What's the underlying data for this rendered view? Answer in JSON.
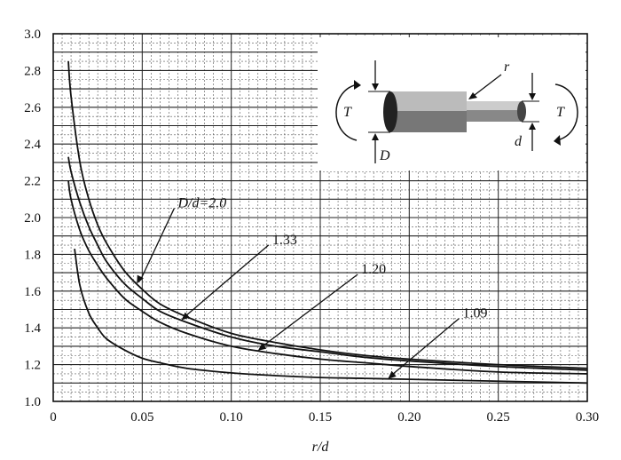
{
  "chart_data": {
    "type": "line",
    "title": "",
    "xlabel": "r/d",
    "ylabel": "",
    "xlim": [
      0,
      0.3
    ],
    "ylim": [
      1.0,
      3.0
    ],
    "grid": true,
    "x_ticks": [
      "0",
      "0.05",
      "0.10",
      "0.15",
      "0.20",
      "0.25",
      "0.30"
    ],
    "y_ticks": [
      "1.0",
      "1.2",
      "1.4",
      "1.6",
      "1.8",
      "2.0",
      "2.2",
      "2.4",
      "2.6",
      "2.8",
      "3.0"
    ],
    "series": [
      {
        "name": "D/d=2.0",
        "x": [
          0.0085,
          0.01,
          0.015,
          0.02,
          0.025,
          0.03,
          0.04,
          0.05,
          0.06,
          0.075,
          0.1,
          0.125,
          0.15,
          0.175,
          0.2,
          0.25,
          0.3
        ],
        "y": [
          2.85,
          2.66,
          2.3,
          2.1,
          1.96,
          1.86,
          1.71,
          1.61,
          1.53,
          1.46,
          1.37,
          1.32,
          1.28,
          1.25,
          1.23,
          1.2,
          1.18
        ]
      },
      {
        "name": "1.33",
        "x": [
          0.0085,
          0.01,
          0.015,
          0.02,
          0.025,
          0.03,
          0.04,
          0.05,
          0.06,
          0.075,
          0.1,
          0.125,
          0.15,
          0.175,
          0.2,
          0.25,
          0.3
        ],
        "y": [
          2.33,
          2.25,
          2.08,
          1.95,
          1.85,
          1.76,
          1.64,
          1.56,
          1.49,
          1.43,
          1.35,
          1.3,
          1.27,
          1.24,
          1.22,
          1.19,
          1.17
        ]
      },
      {
        "name": "1.20",
        "x": [
          0.0085,
          0.01,
          0.015,
          0.02,
          0.025,
          0.03,
          0.04,
          0.05,
          0.06,
          0.075,
          0.1,
          0.125,
          0.15,
          0.175,
          0.2,
          0.25,
          0.3
        ],
        "y": [
          2.2,
          2.1,
          1.93,
          1.82,
          1.74,
          1.67,
          1.56,
          1.49,
          1.43,
          1.37,
          1.3,
          1.26,
          1.23,
          1.21,
          1.19,
          1.16,
          1.15
        ]
      },
      {
        "name": "1.09",
        "x": [
          0.012,
          0.015,
          0.02,
          0.025,
          0.03,
          0.04,
          0.05,
          0.06,
          0.075,
          0.1,
          0.125,
          0.15,
          0.175,
          0.2,
          0.25,
          0.3
        ],
        "y": [
          1.83,
          1.63,
          1.48,
          1.4,
          1.34,
          1.28,
          1.235,
          1.21,
          1.18,
          1.155,
          1.14,
          1.13,
          1.125,
          1.12,
          1.11,
          1.1
        ]
      }
    ],
    "annotations": [
      {
        "text": "D/d=2.0",
        "points_to": "D/d=2.0"
      },
      {
        "text": "1.33",
        "points_to": "1.33"
      },
      {
        "text": "1.20",
        "points_to": "1.20"
      },
      {
        "text": "1.09",
        "points_to": "1.09"
      }
    ],
    "inset": {
      "labels": [
        "r",
        "T",
        "T",
        "D",
        "d"
      ]
    }
  }
}
